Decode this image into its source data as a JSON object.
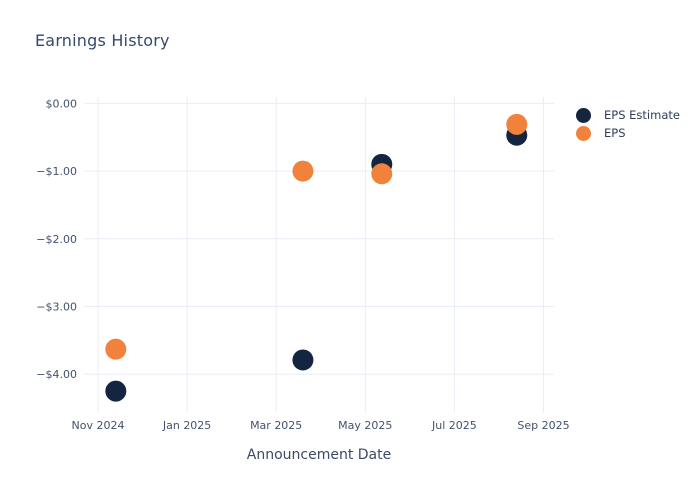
{
  "chart": {
    "title": "Earnings History",
    "x_axis_title": "Announcement Date"
  },
  "chart_data": {
    "type": "scatter",
    "title": "Earnings History",
    "xlabel": "Announcement Date",
    "ylabel": "",
    "grid": true,
    "legend_position": "right",
    "background_color": "#ffffff",
    "gridline_color": "#e9edf6",
    "x_axis": {
      "unit": "months_after_Nov_2024",
      "range": [
        -0.3,
        10.25
      ],
      "ticks": [
        {
          "m": 0,
          "label": "Nov 2024"
        },
        {
          "m": 2,
          "label": "Jan 2025"
        },
        {
          "m": 4,
          "label": "Mar 2025"
        },
        {
          "m": 6,
          "label": "May 2025"
        },
        {
          "m": 8,
          "label": "Jul 2025"
        },
        {
          "m": 10,
          "label": "Sep 2025"
        }
      ]
    },
    "y_axis": {
      "unit": "USD",
      "range": [
        0.1,
        -4.6
      ],
      "ticks": [
        {
          "v": 0,
          "label": "$0.00"
        },
        {
          "v": -1,
          "label": "−$1.00"
        },
        {
          "v": -2,
          "label": "−$2.00"
        },
        {
          "v": -3,
          "label": "−$3.00"
        },
        {
          "v": -4,
          "label": "−$4.00"
        }
      ]
    },
    "series": [
      {
        "name": "EPS Estimate",
        "color": "#142540",
        "points": [
          {
            "m": 0.4,
            "v": -4.25
          },
          {
            "m": 4.6,
            "v": -3.79
          },
          {
            "m": 6.37,
            "v": -0.9
          },
          {
            "m": 9.4,
            "v": -0.47
          }
        ]
      },
      {
        "name": "EPS",
        "color": "#f0823c",
        "points": [
          {
            "m": 0.4,
            "v": -3.63
          },
          {
            "m": 4.6,
            "v": -1.0
          },
          {
            "m": 6.37,
            "v": -1.04
          },
          {
            "m": 9.4,
            "v": -0.31
          }
        ]
      }
    ]
  }
}
